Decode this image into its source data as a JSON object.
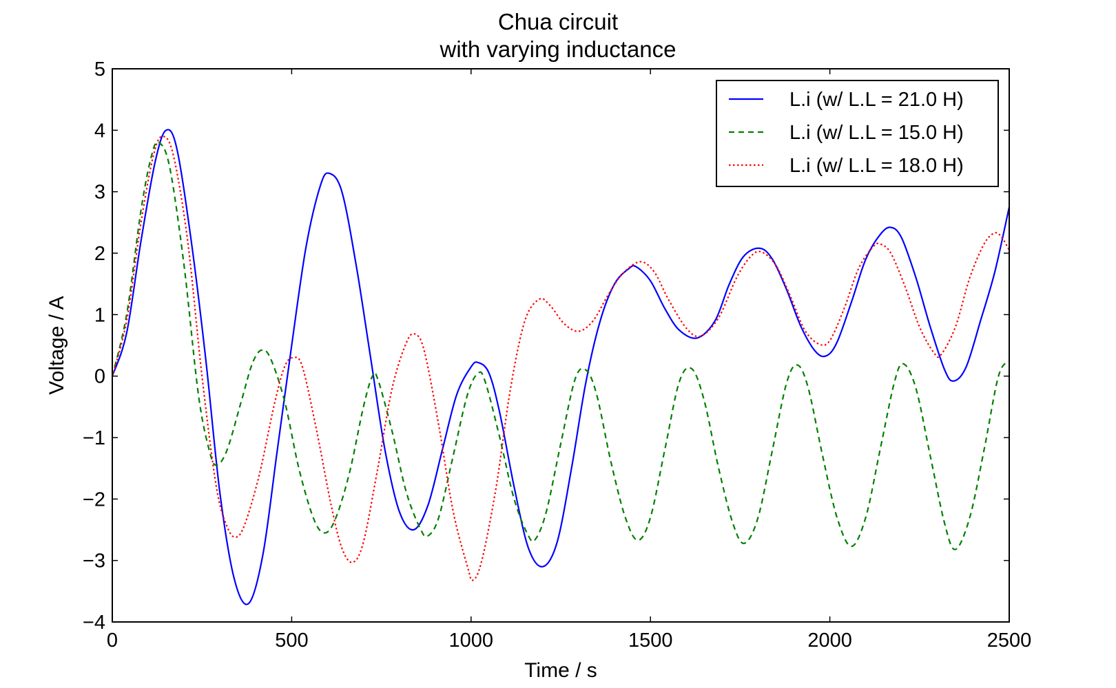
{
  "chart_data": {
    "type": "line",
    "title": [
      "Chua circuit",
      "with varying inductance"
    ],
    "xlabel": "Time / s",
    "ylabel": "Voltage / A",
    "xlim": [
      0,
      2500
    ],
    "ylim": [
      -4,
      5
    ],
    "xticks": [
      0,
      500,
      1000,
      1500,
      2000,
      2500
    ],
    "yticks": [
      -4,
      -3,
      -2,
      -1,
      0,
      1,
      2,
      3,
      4,
      5
    ],
    "xtick_labels": [
      "0",
      "500",
      "1000",
      "1500",
      "2000",
      "2500"
    ],
    "ytick_labels": [
      "−4",
      "−3",
      "−2",
      "−1",
      "0",
      "1",
      "2",
      "3",
      "4",
      "5"
    ],
    "grid": false,
    "legend_position": "top-right",
    "series": [
      {
        "name": "L.i (w/ L.L = 21.0 H)",
        "color": "#0000ff",
        "style": "solid",
        "points": [
          [
            0,
            0
          ],
          [
            40,
            0.7
          ],
          [
            80,
            2.2
          ],
          [
            120,
            3.5
          ],
          [
            150,
            4.0
          ],
          [
            180,
            3.7
          ],
          [
            220,
            2.2
          ],
          [
            260,
            0.3
          ],
          [
            300,
            -1.9
          ],
          [
            340,
            -3.3
          ],
          [
            380,
            -3.7
          ],
          [
            420,
            -2.9
          ],
          [
            460,
            -1.2
          ],
          [
            500,
            0.5
          ],
          [
            540,
            2.1
          ],
          [
            580,
            3.1
          ],
          [
            605,
            3.3
          ],
          [
            640,
            3.0
          ],
          [
            680,
            1.8
          ],
          [
            720,
            0.3
          ],
          [
            760,
            -1.2
          ],
          [
            800,
            -2.2
          ],
          [
            840,
            -2.5
          ],
          [
            880,
            -2.1
          ],
          [
            920,
            -1.2
          ],
          [
            960,
            -0.3
          ],
          [
            1000,
            0.15
          ],
          [
            1020,
            0.22
          ],
          [
            1050,
            0.05
          ],
          [
            1080,
            -0.6
          ],
          [
            1120,
            -1.8
          ],
          [
            1160,
            -2.8
          ],
          [
            1200,
            -3.1
          ],
          [
            1240,
            -2.7
          ],
          [
            1280,
            -1.5
          ],
          [
            1320,
            -0.1
          ],
          [
            1360,
            0.9
          ],
          [
            1400,
            1.5
          ],
          [
            1440,
            1.75
          ],
          [
            1460,
            1.78
          ],
          [
            1500,
            1.55
          ],
          [
            1540,
            1.1
          ],
          [
            1580,
            0.75
          ],
          [
            1630,
            0.62
          ],
          [
            1680,
            0.9
          ],
          [
            1720,
            1.5
          ],
          [
            1760,
            1.95
          ],
          [
            1805,
            2.08
          ],
          [
            1840,
            1.9
          ],
          [
            1880,
            1.4
          ],
          [
            1920,
            0.8
          ],
          [
            1960,
            0.4
          ],
          [
            1990,
            0.33
          ],
          [
            2020,
            0.55
          ],
          [
            2060,
            1.2
          ],
          [
            2100,
            1.9
          ],
          [
            2140,
            2.3
          ],
          [
            2170,
            2.42
          ],
          [
            2200,
            2.25
          ],
          [
            2240,
            1.6
          ],
          [
            2280,
            0.8
          ],
          [
            2320,
            0.1
          ],
          [
            2345,
            -0.08
          ],
          [
            2380,
            0.15
          ],
          [
            2420,
            0.9
          ],
          [
            2460,
            1.7
          ],
          [
            2500,
            2.75
          ]
        ]
      },
      {
        "name": "L.i (w/ L.L = 15.0 H)",
        "color": "#007f00",
        "style": "dashed",
        "points": [
          [
            0,
            0
          ],
          [
            40,
            1.0
          ],
          [
            80,
            2.7
          ],
          [
            110,
            3.6
          ],
          [
            130,
            3.8
          ],
          [
            160,
            3.4
          ],
          [
            200,
            1.8
          ],
          [
            240,
            -0.3
          ],
          [
            270,
            -1.2
          ],
          [
            290,
            -1.45
          ],
          [
            320,
            -1.2
          ],
          [
            360,
            -0.4
          ],
          [
            390,
            0.2
          ],
          [
            415,
            0.42
          ],
          [
            440,
            0.3
          ],
          [
            480,
            -0.4
          ],
          [
            520,
            -1.5
          ],
          [
            560,
            -2.3
          ],
          [
            590,
            -2.55
          ],
          [
            620,
            -2.35
          ],
          [
            660,
            -1.6
          ],
          [
            700,
            -0.5
          ],
          [
            725,
            0.0
          ],
          [
            740,
            -0.05
          ],
          [
            780,
            -0.9
          ],
          [
            820,
            -1.9
          ],
          [
            860,
            -2.5
          ],
          [
            880,
            -2.6
          ],
          [
            910,
            -2.3
          ],
          [
            950,
            -1.3
          ],
          [
            990,
            -0.3
          ],
          [
            1020,
            0.05
          ],
          [
            1040,
            -0.1
          ],
          [
            1080,
            -1.0
          ],
          [
            1120,
            -2.0
          ],
          [
            1160,
            -2.6
          ],
          [
            1180,
            -2.65
          ],
          [
            1210,
            -2.2
          ],
          [
            1250,
            -1.1
          ],
          [
            1290,
            -0.05
          ],
          [
            1320,
            0.1
          ],
          [
            1350,
            -0.3
          ],
          [
            1390,
            -1.4
          ],
          [
            1430,
            -2.3
          ],
          [
            1465,
            -2.67
          ],
          [
            1500,
            -2.3
          ],
          [
            1540,
            -1.2
          ],
          [
            1580,
            -0.1
          ],
          [
            1615,
            0.12
          ],
          [
            1650,
            -0.4
          ],
          [
            1690,
            -1.5
          ],
          [
            1730,
            -2.4
          ],
          [
            1762,
            -2.72
          ],
          [
            1800,
            -2.3
          ],
          [
            1840,
            -1.2
          ],
          [
            1880,
            -0.1
          ],
          [
            1910,
            0.18
          ],
          [
            1940,
            -0.2
          ],
          [
            1980,
            -1.3
          ],
          [
            2020,
            -2.3
          ],
          [
            2060,
            -2.77
          ],
          [
            2100,
            -2.3
          ],
          [
            2140,
            -1.2
          ],
          [
            2180,
            -0.1
          ],
          [
            2205,
            0.2
          ],
          [
            2240,
            -0.2
          ],
          [
            2280,
            -1.3
          ],
          [
            2320,
            -2.4
          ],
          [
            2350,
            -2.82
          ],
          [
            2390,
            -2.3
          ],
          [
            2430,
            -1.2
          ],
          [
            2470,
            0.0
          ],
          [
            2500,
            0.25
          ]
        ]
      },
      {
        "name": "L.i (w/ L.L = 18.0 H)",
        "color": "#ff0000",
        "style": "dotted",
        "points": [
          [
            0,
            0
          ],
          [
            40,
            0.9
          ],
          [
            80,
            2.5
          ],
          [
            115,
            3.6
          ],
          [
            140,
            3.9
          ],
          [
            170,
            3.6
          ],
          [
            210,
            2.2
          ],
          [
            250,
            0.0
          ],
          [
            290,
            -1.8
          ],
          [
            320,
            -2.45
          ],
          [
            345,
            -2.62
          ],
          [
            370,
            -2.4
          ],
          [
            410,
            -1.6
          ],
          [
            450,
            -0.5
          ],
          [
            480,
            0.15
          ],
          [
            505,
            0.3
          ],
          [
            530,
            0.15
          ],
          [
            570,
            -0.9
          ],
          [
            610,
            -2.1
          ],
          [
            640,
            -2.8
          ],
          [
            670,
            -3.03
          ],
          [
            700,
            -2.7
          ],
          [
            740,
            -1.5
          ],
          [
            780,
            -0.2
          ],
          [
            820,
            0.55
          ],
          [
            845,
            0.68
          ],
          [
            870,
            0.4
          ],
          [
            910,
            -0.8
          ],
          [
            950,
            -2.2
          ],
          [
            990,
            -3.1
          ],
          [
            1005,
            -3.32
          ],
          [
            1030,
            -3.0
          ],
          [
            1070,
            -1.8
          ],
          [
            1110,
            -0.2
          ],
          [
            1150,
            0.9
          ],
          [
            1190,
            1.25
          ],
          [
            1220,
            1.15
          ],
          [
            1260,
            0.85
          ],
          [
            1300,
            0.73
          ],
          [
            1340,
            0.9
          ],
          [
            1380,
            1.3
          ],
          [
            1420,
            1.65
          ],
          [
            1470,
            1.86
          ],
          [
            1510,
            1.7
          ],
          [
            1550,
            1.25
          ],
          [
            1600,
            0.78
          ],
          [
            1640,
            0.65
          ],
          [
            1690,
            0.95
          ],
          [
            1740,
            1.6
          ],
          [
            1780,
            1.95
          ],
          [
            1810,
            2.02
          ],
          [
            1850,
            1.8
          ],
          [
            1890,
            1.3
          ],
          [
            1930,
            0.75
          ],
          [
            1970,
            0.52
          ],
          [
            2000,
            0.58
          ],
          [
            2040,
            1.1
          ],
          [
            2080,
            1.75
          ],
          [
            2120,
            2.1
          ],
          [
            2140,
            2.15
          ],
          [
            2170,
            2.0
          ],
          [
            2210,
            1.45
          ],
          [
            2250,
            0.8
          ],
          [
            2290,
            0.38
          ],
          [
            2310,
            0.35
          ],
          [
            2350,
            0.8
          ],
          [
            2390,
            1.6
          ],
          [
            2430,
            2.15
          ],
          [
            2460,
            2.33
          ],
          [
            2480,
            2.25
          ],
          [
            2500,
            2.05
          ]
        ]
      }
    ]
  }
}
